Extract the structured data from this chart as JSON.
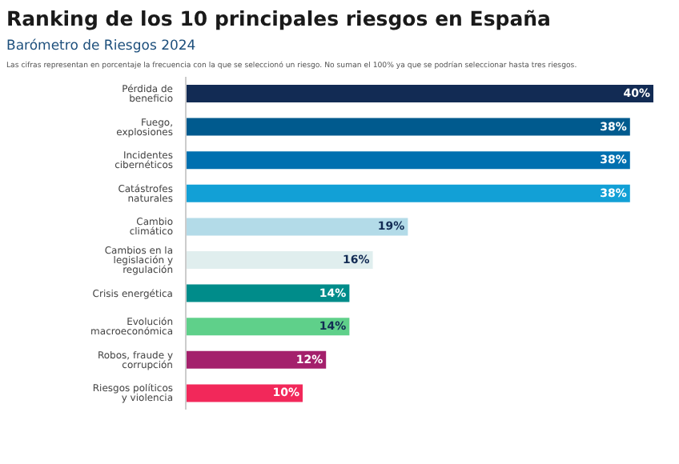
{
  "chart_data": {
    "type": "bar",
    "orientation": "horizontal",
    "title": "Ranking de los 10 principales riesgos en España",
    "subtitle": "Barómetro de Riesgos 2024",
    "annotations": [
      "Las cifras representan en porcentaje la frecuencia con la que se seleccionó un riesgo. No suman el 100% ya que se podrían seleccionar hasta tres riesgos."
    ],
    "categories": [
      "Pérdida de beneficio",
      "Fuego, explosiones",
      "Incidentes cibernéticos",
      "Catástrofes naturales",
      "Cambio climático",
      "Cambios en la legislación y regulación",
      "Crisis energética",
      "Evolución macroeconómica",
      "Robos, fraude y corrupción",
      "Riesgos políticos y violencia"
    ],
    "values": [
      40,
      38,
      38,
      38,
      19,
      16,
      14,
      14,
      12,
      10
    ],
    "value_labels": [
      "40%",
      "38%",
      "38%",
      "38%",
      "19%",
      "16%",
      "14%",
      "14%",
      "12%",
      "10%"
    ],
    "colors": [
      "#122b54",
      "#005a8e",
      "#0070b0",
      "#12a0d6",
      "#b3dbe8",
      "#e0eeee",
      "#008c8a",
      "#5fd08a",
      "#a4206c",
      "#f2285a"
    ],
    "grid": false,
    "legend": false
  }
}
